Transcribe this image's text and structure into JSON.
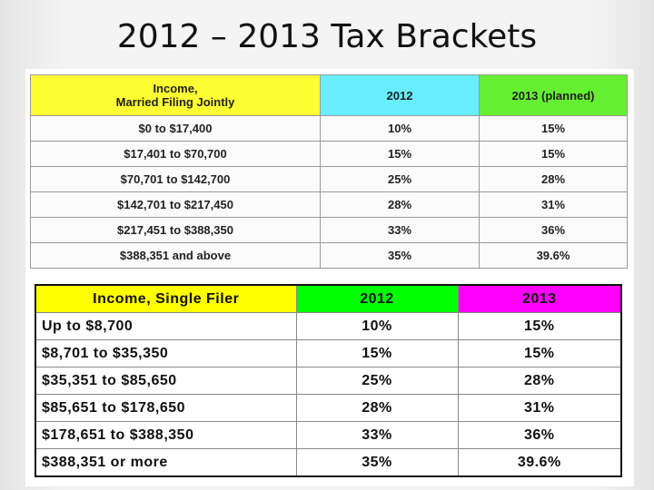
{
  "title": "2012 – 2013 Tax Brackets",
  "table_married": {
    "header": [
      [
        "Income,",
        "Married Filing Jointly"
      ],
      [
        "2012"
      ],
      [
        "2013 (planned)"
      ]
    ],
    "rows": [
      [
        "$0 to $17,400",
        "10%",
        "15%"
      ],
      [
        "$17,401 to $70,700",
        "15%",
        "15%"
      ],
      [
        "$70,701 to $142,700",
        "25%",
        "28%"
      ],
      [
        "$142,701 to $217,450",
        "28%",
        "31%"
      ],
      [
        "$217,451 to $388,350",
        "33%",
        "36%"
      ],
      [
        "$388,351 and above",
        "35%",
        "39.6%"
      ]
    ]
  },
  "table_single": {
    "header": [
      "Income, Single Filer",
      "2012",
      "2013"
    ],
    "rows": [
      [
        "Up to $8,700",
        "10%",
        "15%"
      ],
      [
        "$8,701 to $35,350",
        "15%",
        "15%"
      ],
      [
        "$35,351 to $85,650",
        "25%",
        "28%"
      ],
      [
        "$85,651 to $178,650",
        "28%",
        "31%"
      ],
      [
        "$178,651 to $388,350",
        "33%",
        "36%"
      ],
      [
        "$388,351 or more",
        "35%",
        "39.6%"
      ]
    ]
  }
}
